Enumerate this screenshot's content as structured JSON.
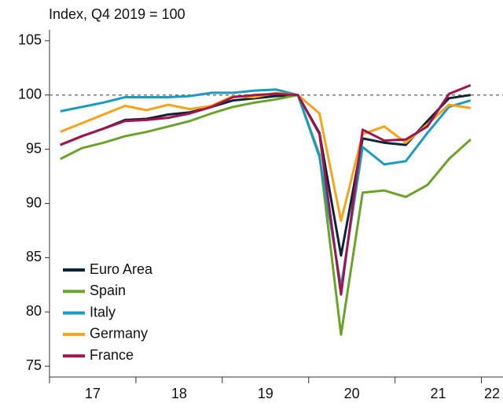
{
  "chart_data": {
    "type": "line",
    "title": "Index, Q4 2019 = 100",
    "x": [
      17.125,
      17.375,
      17.625,
      17.875,
      18.125,
      18.375,
      18.625,
      18.875,
      19.125,
      19.375,
      19.625,
      19.875,
      20.125,
      20.375,
      20.625,
      20.875,
      21.125,
      21.375,
      21.625,
      21.875
    ],
    "xlim": [
      17,
      22.25
    ],
    "xticks": [
      {
        "value": 17,
        "label": "17"
      },
      {
        "value": 18,
        "label": "18"
      },
      {
        "value": 19,
        "label": "19"
      },
      {
        "value": 20,
        "label": "20"
      },
      {
        "value": 21,
        "label": "21"
      },
      {
        "value": 22,
        "label": "22"
      }
    ],
    "ylim": [
      74,
      106
    ],
    "yticks": [
      75,
      80,
      85,
      90,
      95,
      100,
      105
    ],
    "reference_line": 100,
    "legend": "lower left",
    "series": [
      {
        "name": "Euro Area",
        "color": "#0d2436",
        "values": [
          95.4,
          96.2,
          96.9,
          97.7,
          97.8,
          98.2,
          98.4,
          98.9,
          99.5,
          99.7,
          99.9,
          100.0,
          96.5,
          85.2,
          96.0,
          95.6,
          95.4,
          97.6,
          99.7,
          100.0
        ]
      },
      {
        "name": "Spain",
        "color": "#6aa329",
        "values": [
          94.1,
          95.1,
          95.6,
          96.2,
          96.6,
          97.1,
          97.6,
          98.3,
          98.9,
          99.3,
          99.6,
          100.0,
          94.5,
          77.9,
          91.0,
          91.2,
          90.6,
          91.7,
          94.1,
          95.9
        ]
      },
      {
        "name": "Italy",
        "color": "#1a9bc0",
        "values": [
          98.5,
          98.9,
          99.3,
          99.8,
          99.8,
          99.8,
          99.9,
          100.2,
          100.2,
          100.4,
          100.5,
          100.0,
          94.3,
          82.3,
          95.2,
          93.6,
          93.9,
          96.5,
          98.9,
          99.5
        ]
      },
      {
        "name": "Germany",
        "color": "#f7a21b",
        "values": [
          96.6,
          97.4,
          98.2,
          99.0,
          98.6,
          99.1,
          98.7,
          99.0,
          99.9,
          99.8,
          100.2,
          100.0,
          98.3,
          88.4,
          96.4,
          97.1,
          95.6,
          97.3,
          99.1,
          98.8
        ]
      },
      {
        "name": "France",
        "color": "#a0154d",
        "values": [
          95.4,
          96.2,
          96.9,
          97.6,
          97.7,
          97.9,
          98.3,
          98.9,
          99.8,
          100.0,
          100.1,
          100.0,
          96.4,
          81.6,
          96.8,
          95.8,
          95.9,
          97.1,
          100.1,
          100.9
        ]
      }
    ]
  }
}
